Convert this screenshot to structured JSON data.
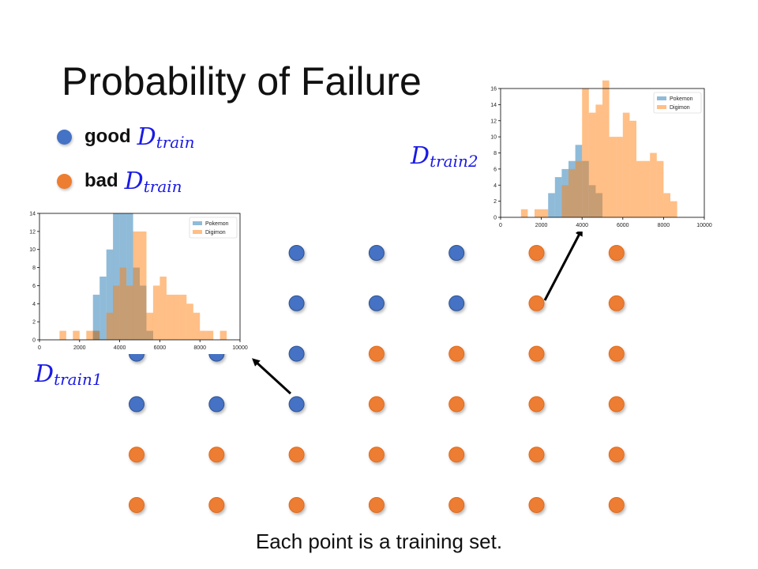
{
  "title": "Probability of Failure",
  "legend": [
    {
      "word": "good",
      "symbol": "D",
      "subscript": "train",
      "color": "#4472c4"
    },
    {
      "word": "bad",
      "symbol": "D",
      "subscript": "train",
      "color": "#ed7d31"
    }
  ],
  "grid": {
    "columns": 7,
    "rows": 6,
    "good_color": "#4472c4",
    "bad_color": "#ed7d31",
    "cells": [
      [
        "bad",
        "bad",
        "good",
        "good",
        "good",
        "bad",
        "bad"
      ],
      [
        "bad",
        "bad",
        "good",
        "good",
        "good",
        "bad",
        "bad"
      ],
      [
        "good",
        "good",
        "good",
        "bad",
        "bad",
        "bad",
        "bad"
      ],
      [
        "good",
        "good",
        "good",
        "bad",
        "bad",
        "bad",
        "bad"
      ],
      [
        "bad",
        "bad",
        "bad",
        "bad",
        "bad",
        "bad",
        "bad"
      ],
      [
        "bad",
        "bad",
        "bad",
        "bad",
        "bad",
        "bad",
        "bad"
      ]
    ]
  },
  "label1": {
    "symbol": "D",
    "subscript": "train1"
  },
  "label2": {
    "symbol": "D",
    "subscript": "train2"
  },
  "caption": "Each point is a training set.",
  "chart_data": [
    {
      "type": "histogram",
      "x_ticks": [
        "0",
        "2000",
        "4000",
        "6000",
        "8000",
        "10000"
      ],
      "y_ticks": [
        "0",
        "2",
        "4",
        "6",
        "8",
        "10",
        "12",
        "14"
      ],
      "xlim": [
        0,
        10000
      ],
      "ylim": [
        0,
        14
      ],
      "bin_width": 333,
      "legend_placement": "top-right",
      "series": [
        {
          "name": "Pokemon",
          "color": "#1f77b4",
          "bins": [
            [
              2667,
              1
            ],
            [
              2667,
              5
            ],
            [
              3000,
              7
            ],
            [
              3333,
              10
            ],
            [
              3667,
              14
            ],
            [
              4000,
              14
            ],
            [
              4333,
              14
            ],
            [
              4667,
              8
            ],
            [
              5000,
              6
            ],
            [
              5333,
              1
            ]
          ]
        },
        {
          "name": "Digimon",
          "color": "#ff7f0e",
          "bins": [
            [
              1000,
              1
            ],
            [
              1667,
              1
            ],
            [
              2333,
              1
            ],
            [
              2667,
              1
            ],
            [
              3333,
              3
            ],
            [
              3667,
              6
            ],
            [
              4000,
              8
            ],
            [
              4333,
              6
            ],
            [
              4667,
              12
            ],
            [
              5000,
              12
            ],
            [
              5333,
              3
            ],
            [
              5667,
              6
            ],
            [
              6000,
              7
            ],
            [
              6333,
              5
            ],
            [
              6667,
              5
            ],
            [
              7000,
              5
            ],
            [
              7333,
              4
            ],
            [
              7667,
              3
            ],
            [
              8000,
              1
            ],
            [
              8333,
              1
            ],
            [
              9000,
              1
            ]
          ]
        }
      ]
    },
    {
      "type": "histogram",
      "x_ticks": [
        "0",
        "2000",
        "4000",
        "6000",
        "8000",
        "10000"
      ],
      "y_ticks": [
        "0",
        "2",
        "4",
        "6",
        "8",
        "10",
        "12",
        "14",
        "16"
      ],
      "xlim": [
        0,
        10000
      ],
      "ylim": [
        0,
        16
      ],
      "bin_width": 333,
      "legend_placement": "top-right",
      "series": [
        {
          "name": "Pokemon",
          "color": "#1f77b4",
          "bins": [
            [
              2333,
              3
            ],
            [
              2667,
              5
            ],
            [
              3000,
              6
            ],
            [
              3333,
              7
            ],
            [
              3667,
              9
            ],
            [
              4000,
              7
            ],
            [
              4333,
              4
            ],
            [
              4667,
              3
            ]
          ]
        },
        {
          "name": "Digimon",
          "color": "#ff7f0e",
          "bins": [
            [
              1000,
              1
            ],
            [
              1667,
              1
            ],
            [
              2000,
              1
            ],
            [
              3000,
              4
            ],
            [
              3333,
              6
            ],
            [
              3667,
              7
            ],
            [
              4000,
              16
            ],
            [
              4333,
              13
            ],
            [
              4667,
              14
            ],
            [
              5000,
              17
            ],
            [
              5333,
              10
            ],
            [
              5667,
              10
            ],
            [
              6000,
              13
            ],
            [
              6333,
              12
            ],
            [
              6667,
              7
            ],
            [
              7000,
              7
            ],
            [
              7333,
              8
            ],
            [
              7667,
              7
            ],
            [
              8000,
              3
            ],
            [
              8333,
              2
            ]
          ]
        }
      ]
    }
  ]
}
